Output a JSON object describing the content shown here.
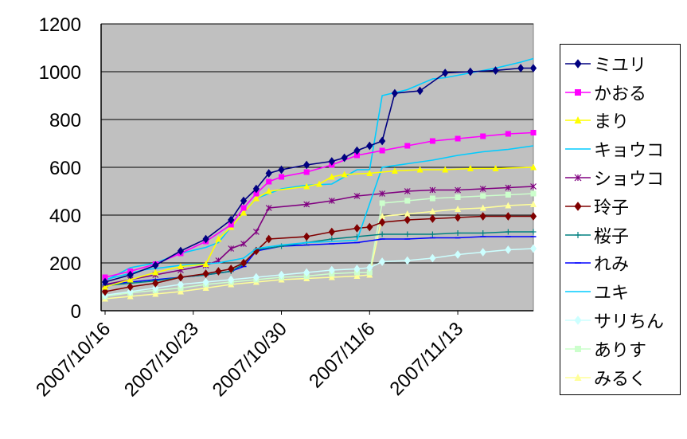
{
  "chart_data": {
    "type": "line",
    "title": "",
    "xlabel": "",
    "ylabel": "",
    "ylim": [
      0,
      1200
    ],
    "y_ticks": [
      "0",
      "200",
      "400",
      "600",
      "800",
      "1000",
      "1200"
    ],
    "x_tick_labels": [
      "2007/10/16",
      "2007/10/23",
      "2007/10/30",
      "2007/11/6",
      "2007/11/13"
    ],
    "x_start": "2007/10/16",
    "x_end": "2007/11/19",
    "background": "#c0c0c0",
    "grid": "horizontal",
    "legend_position": "right",
    "series": [
      {
        "name": "ミユリ",
        "color": "#000080",
        "marker": "diamond",
        "x": [
          "2007/10/16",
          "2007/10/18",
          "2007/10/20",
          "2007/10/22",
          "2007/10/24",
          "2007/10/26",
          "2007/10/27",
          "2007/10/28",
          "2007/10/29",
          "2007/10/30",
          "2007/11/1",
          "2007/11/3",
          "2007/11/4",
          "2007/11/5",
          "2007/11/6",
          "2007/11/7",
          "2007/11/8",
          "2007/11/10",
          "2007/11/12",
          "2007/11/14",
          "2007/11/16",
          "2007/11/18",
          "2007/11/19"
        ],
        "y": [
          120,
          150,
          190,
          250,
          300,
          380,
          460,
          510,
          575,
          590,
          610,
          625,
          640,
          670,
          690,
          710,
          910,
          920,
          995,
          1000,
          1005,
          1015,
          1015
        ]
      },
      {
        "name": "かおる",
        "color": "#ff00ff",
        "marker": "square",
        "x": [
          "2007/10/16",
          "2007/10/18",
          "2007/10/20",
          "2007/10/22",
          "2007/10/24",
          "2007/10/26",
          "2007/10/27",
          "2007/10/28",
          "2007/10/29",
          "2007/10/30",
          "2007/11/1",
          "2007/11/3",
          "2007/11/5",
          "2007/11/7",
          "2007/11/9",
          "2007/11/11",
          "2007/11/13",
          "2007/11/15",
          "2007/11/17",
          "2007/11/19"
        ],
        "y": [
          140,
          165,
          195,
          240,
          290,
          360,
          430,
          490,
          540,
          560,
          580,
          610,
          650,
          670,
          690,
          710,
          720,
          730,
          740,
          745
        ]
      },
      {
        "name": "まり",
        "color": "#ffff00",
        "marker": "triangle",
        "x": [
          "2007/10/16",
          "2007/10/18",
          "2007/10/20",
          "2007/10/22",
          "2007/10/24",
          "2007/10/25",
          "2007/10/26",
          "2007/10/27",
          "2007/10/28",
          "2007/10/29",
          "2007/11/1",
          "2007/11/2",
          "2007/11/3",
          "2007/11/4",
          "2007/11/6",
          "2007/11/8",
          "2007/11/10",
          "2007/11/12",
          "2007/11/14",
          "2007/11/16",
          "2007/11/19"
        ],
        "y": [
          100,
          130,
          160,
          185,
          195,
          300,
          350,
          410,
          470,
          500,
          520,
          530,
          560,
          570,
          575,
          585,
          590,
          590,
          595,
          595,
          600
        ]
      },
      {
        "name": "キョウコ",
        "color": "#00ccff",
        "marker": "none",
        "x": [
          "2007/10/16",
          "2007/10/19",
          "2007/10/22",
          "2007/10/25",
          "2007/10/27",
          "2007/10/28",
          "2007/10/30",
          "2007/11/1",
          "2007/11/3",
          "2007/11/5",
          "2007/11/7",
          "2007/11/9",
          "2007/11/11",
          "2007/11/13",
          "2007/11/15",
          "2007/11/17",
          "2007/11/19"
        ],
        "y": [
          130,
          170,
          190,
          200,
          220,
          260,
          275,
          285,
          290,
          295,
          600,
          615,
          630,
          650,
          665,
          675,
          690
        ]
      },
      {
        "name": "ショウコ",
        "color": "#800080",
        "marker": "star",
        "x": [
          "2007/10/16",
          "2007/10/18",
          "2007/10/20",
          "2007/10/22",
          "2007/10/24",
          "2007/10/25",
          "2007/10/26",
          "2007/10/27",
          "2007/10/28",
          "2007/10/29",
          "2007/11/1",
          "2007/11/3",
          "2007/11/5",
          "2007/11/7",
          "2007/11/9",
          "2007/11/11",
          "2007/11/13",
          "2007/11/15",
          "2007/11/17",
          "2007/11/19"
        ],
        "y": [
          110,
          130,
          150,
          170,
          190,
          210,
          260,
          280,
          330,
          430,
          445,
          460,
          480,
          490,
          500,
          505,
          505,
          510,
          515,
          520
        ]
      },
      {
        "name": "玲子",
        "color": "#800000",
        "marker": "diamond",
        "x": [
          "2007/10/16",
          "2007/10/18",
          "2007/10/20",
          "2007/10/22",
          "2007/10/24",
          "2007/10/25",
          "2007/10/26",
          "2007/10/27",
          "2007/10/28",
          "2007/10/29",
          "2007/11/1",
          "2007/11/3",
          "2007/11/5",
          "2007/11/6",
          "2007/11/7",
          "2007/11/9",
          "2007/11/11",
          "2007/11/13",
          "2007/11/15",
          "2007/11/17",
          "2007/11/19"
        ],
        "y": [
          80,
          100,
          115,
          140,
          155,
          165,
          175,
          200,
          250,
          300,
          310,
          330,
          345,
          350,
          370,
          380,
          385,
          390,
          395,
          395,
          395
        ]
      },
      {
        "name": "桜子",
        "color": "#008080",
        "marker": "plus",
        "x": [
          "2007/10/16",
          "2007/10/18",
          "2007/10/20",
          "2007/10/22",
          "2007/10/24",
          "2007/10/26",
          "2007/10/27",
          "2007/10/28",
          "2007/10/30",
          "2007/11/1",
          "2007/11/3",
          "2007/11/5",
          "2007/11/7",
          "2007/11/9",
          "2007/11/11",
          "2007/11/13",
          "2007/11/15",
          "2007/11/17",
          "2007/11/19"
        ],
        "y": [
          105,
          115,
          125,
          140,
          150,
          165,
          195,
          255,
          270,
          285,
          300,
          310,
          320,
          320,
          320,
          325,
          325,
          330,
          330
        ]
      },
      {
        "name": "れみ",
        "color": "#0000ff",
        "marker": "dash",
        "x": [
          "2007/10/16",
          "2007/10/18",
          "2007/10/20",
          "2007/10/22",
          "2007/10/24",
          "2007/10/26",
          "2007/10/27",
          "2007/10/28",
          "2007/10/30",
          "2007/11/1",
          "2007/11/3",
          "2007/11/5",
          "2007/11/7",
          "2007/11/9",
          "2007/11/11",
          "2007/11/13",
          "2007/11/15",
          "2007/11/17",
          "2007/11/19"
        ],
        "y": [
          110,
          120,
          130,
          140,
          150,
          165,
          185,
          250,
          270,
          275,
          280,
          285,
          300,
          300,
          305,
          305,
          310,
          310,
          310
        ]
      },
      {
        "name": "ユキ",
        "color": "#00ccff",
        "marker": "none",
        "x": [
          "2007/10/16",
          "2007/10/18",
          "2007/10/20",
          "2007/10/22",
          "2007/10/24",
          "2007/10/25",
          "2007/10/26",
          "2007/10/28",
          "2007/10/30",
          "2007/11/1",
          "2007/11/3",
          "2007/11/4",
          "2007/11/5",
          "2007/11/6",
          "2007/11/7",
          "2007/11/9",
          "2007/11/11",
          "2007/11/12",
          "2007/11/14",
          "2007/11/16",
          "2007/11/18",
          "2007/11/19"
        ],
        "y": [
          125,
          180,
          200,
          240,
          265,
          285,
          350,
          470,
          510,
          525,
          530,
          560,
          590,
          590,
          900,
          925,
          970,
          975,
          995,
          1015,
          1040,
          1055
        ]
      },
      {
        "name": "サリちん",
        "color": "#ccffff",
        "marker": "diamond",
        "x": [
          "2007/10/16",
          "2007/10/18",
          "2007/10/20",
          "2007/10/22",
          "2007/10/24",
          "2007/10/26",
          "2007/10/28",
          "2007/10/30",
          "2007/11/1",
          "2007/11/3",
          "2007/11/5",
          "2007/11/6",
          "2007/11/7",
          "2007/11/9",
          "2007/11/11",
          "2007/11/13",
          "2007/11/15",
          "2007/11/17",
          "2007/11/19"
        ],
        "y": [
          65,
          80,
          95,
          110,
          120,
          130,
          140,
          150,
          160,
          170,
          175,
          180,
          205,
          210,
          220,
          235,
          245,
          255,
          260
        ]
      },
      {
        "name": "ありす",
        "color": "#ccffcc",
        "marker": "square",
        "x": [
          "2007/10/16",
          "2007/10/18",
          "2007/10/20",
          "2007/10/22",
          "2007/10/24",
          "2007/10/26",
          "2007/10/28",
          "2007/10/30",
          "2007/11/1",
          "2007/11/3",
          "2007/11/5",
          "2007/11/6",
          "2007/11/7",
          "2007/11/9",
          "2007/11/11",
          "2007/11/13",
          "2007/11/15",
          "2007/11/17",
          "2007/11/19"
        ],
        "y": [
          60,
          75,
          85,
          95,
          110,
          120,
          130,
          140,
          145,
          155,
          160,
          160,
          450,
          460,
          470,
          475,
          480,
          485,
          490
        ]
      },
      {
        "name": "みるく",
        "color": "#ffff99",
        "marker": "triangle",
        "x": [
          "2007/10/16",
          "2007/10/18",
          "2007/10/20",
          "2007/10/22",
          "2007/10/24",
          "2007/10/26",
          "2007/10/28",
          "2007/10/30",
          "2007/11/1",
          "2007/11/3",
          "2007/11/5",
          "2007/11/6",
          "2007/11/7",
          "2007/11/9",
          "2007/11/11",
          "2007/11/13",
          "2007/11/15",
          "2007/11/17",
          "2007/11/19"
        ],
        "y": [
          50,
          60,
          70,
          80,
          95,
          110,
          120,
          130,
          135,
          140,
          145,
          150,
          395,
          405,
          415,
          425,
          430,
          440,
          445
        ]
      }
    ]
  }
}
